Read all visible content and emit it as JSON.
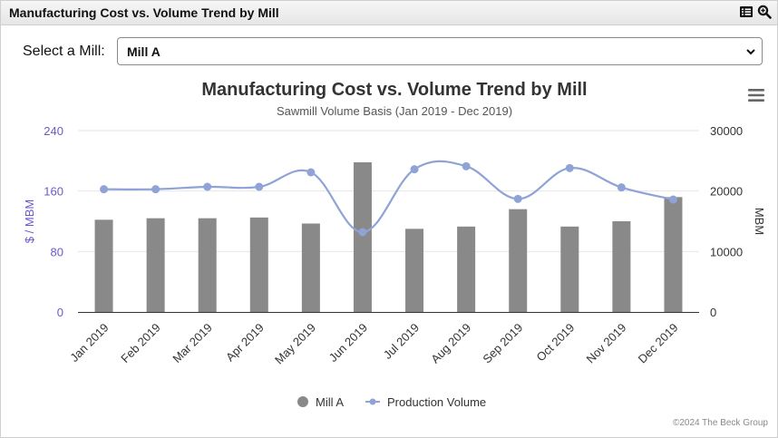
{
  "header": {
    "title": "Manufacturing Cost vs. Volume Trend by Mill"
  },
  "selector": {
    "label": "Select a Mill:",
    "value": "Mill A"
  },
  "footer": {
    "credit": "©2024 The Beck Group"
  },
  "icons": {
    "list": "list-icon",
    "search": "search-zoom-icon",
    "menu": "hamburger-menu-icon"
  },
  "colors": {
    "bar": "#898989",
    "line": "#8fa3d6",
    "left_axis": "#6a5acd",
    "grid": "#e6e6e6"
  },
  "chart_data": {
    "type": "bar",
    "title": "Manufacturing Cost vs. Volume Trend by Mill",
    "subtitle": "Sawmill Volume Basis (Jan 2019 - Dec 2019)",
    "categories": [
      "Jan 2019",
      "Feb 2019",
      "Mar 2019",
      "Apr 2019",
      "May 2019",
      "Jun 2019",
      "Jul 2019",
      "Aug 2019",
      "Sep 2019",
      "Oct 2019",
      "Nov 2019",
      "Dec 2019"
    ],
    "ylabel_left": "$ / MBM",
    "ylabel_right": "MBM",
    "yticks_left": [
      "0",
      "80",
      "160",
      "240"
    ],
    "yticks_right": [
      "0",
      "10000",
      "20000",
      "30000"
    ],
    "ylim_left": [
      0,
      240
    ],
    "ylim_right": [
      0,
      30000
    ],
    "series": [
      {
        "name": "Mill A",
        "type": "bar",
        "axis": "left",
        "values": [
          122,
          124,
          124,
          125,
          117,
          198,
          110,
          113,
          136,
          113,
          120,
          152
        ]
      },
      {
        "name": "Production Volume",
        "type": "line",
        "axis": "right",
        "values": [
          20300,
          20300,
          20700,
          20700,
          23100,
          13200,
          23600,
          24100,
          18700,
          23800,
          20600,
          18600
        ]
      }
    ],
    "legend": {
      "position": "bottom-center"
    },
    "grid": true
  }
}
